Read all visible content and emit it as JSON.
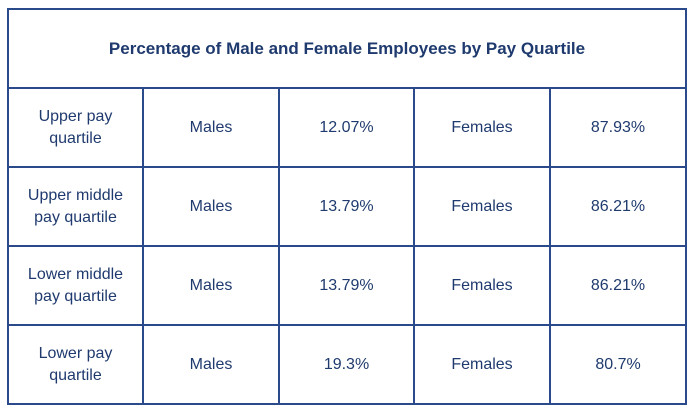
{
  "table": {
    "title": "Percentage of Male and Female Employees by Pay Quartile",
    "rows": [
      {
        "quartile": "Upper pay quartile",
        "male_label": "Males",
        "male_pct": "12.07%",
        "female_label": "Females",
        "female_pct": "87.93%"
      },
      {
        "quartile": "Upper middle pay quartile",
        "male_label": "Males",
        "male_pct": "13.79%",
        "female_label": "Females",
        "female_pct": "86.21%"
      },
      {
        "quartile": "Lower middle pay quartile",
        "male_label": "Males",
        "male_pct": "13.79%",
        "female_label": "Females",
        "female_pct": "86.21%"
      },
      {
        "quartile": "Lower pay quartile",
        "male_label": "Males",
        "male_pct": "19.3%",
        "female_label": "Females",
        "female_pct": "80.7%"
      }
    ]
  }
}
